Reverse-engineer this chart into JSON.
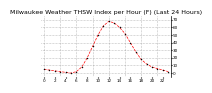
{
  "title": "Milwaukee Weather THSW Index per Hour (F) (Last 24 Hours)",
  "hours": [
    0,
    1,
    2,
    3,
    4,
    5,
    6,
    7,
    8,
    9,
    10,
    11,
    12,
    13,
    14,
    15,
    16,
    17,
    18,
    19,
    20,
    21,
    22,
    23
  ],
  "values": [
    5,
    4,
    3,
    2,
    1,
    0,
    2,
    8,
    20,
    35,
    50,
    62,
    68,
    66,
    60,
    52,
    40,
    28,
    18,
    12,
    8,
    6,
    4,
    2
  ],
  "line_color": "#ff0000",
  "marker_color": "#000000",
  "bg_color": "#ffffff",
  "grid_color": "#888888",
  "ylim_min": -5,
  "ylim_max": 75,
  "ytick_values": [
    0,
    10,
    20,
    30,
    40,
    50,
    60,
    70
  ],
  "ytick_labels": [
    "0",
    "10",
    "20",
    "30",
    "40",
    "50",
    "60",
    "70"
  ],
  "xtick_values": [
    0,
    2,
    4,
    6,
    8,
    10,
    12,
    14,
    16,
    18,
    20,
    22
  ],
  "xtick_labels": [
    "0",
    "2",
    "4",
    "6",
    "8",
    "10",
    "12",
    "14",
    "16",
    "18",
    "20",
    "22"
  ],
  "vgrid_positions": [
    0,
    3,
    6,
    9,
    12,
    15,
    18,
    21
  ],
  "title_fontsize": 4.5,
  "ytick_fontsize": 3.0,
  "xtick_fontsize": 3.0
}
